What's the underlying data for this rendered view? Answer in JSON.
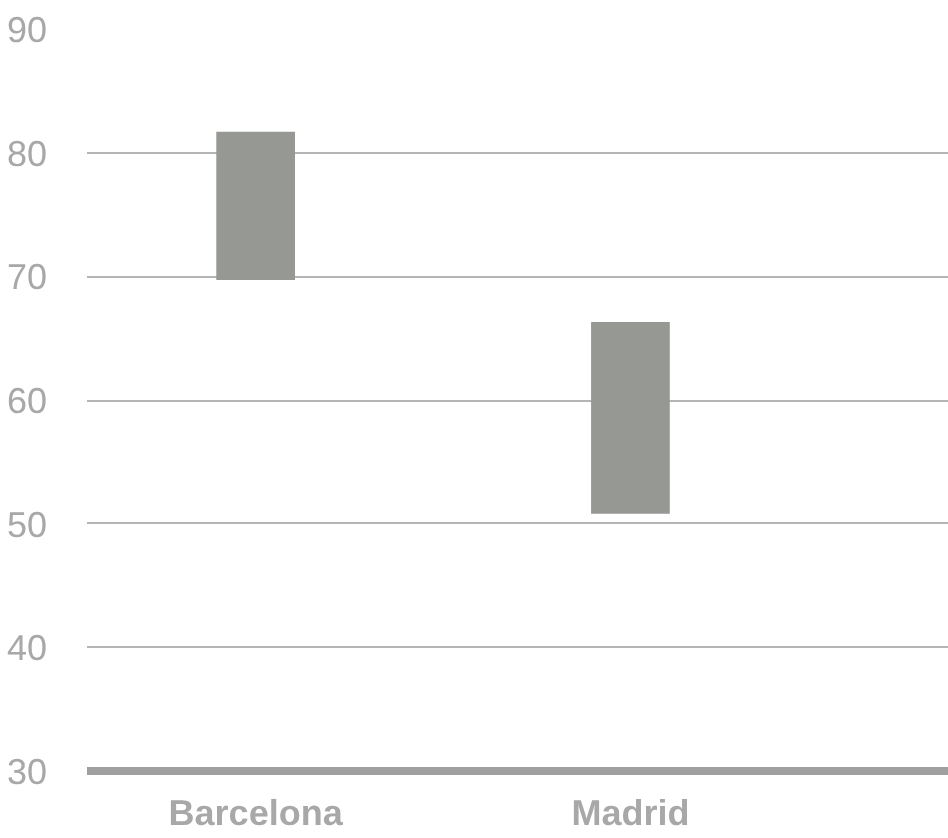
{
  "chart_data": {
    "type": "bar",
    "categories": [
      "Barcelona",
      "Madrid"
    ],
    "base": [
      69.7,
      50.8
    ],
    "values": [
      12.0,
      15.5
    ],
    "color": "#959893",
    "ylim": [
      30,
      90
    ],
    "yticks": [
      30,
      40,
      50,
      60,
      70,
      80,
      90
    ],
    "grid": "y"
  }
}
